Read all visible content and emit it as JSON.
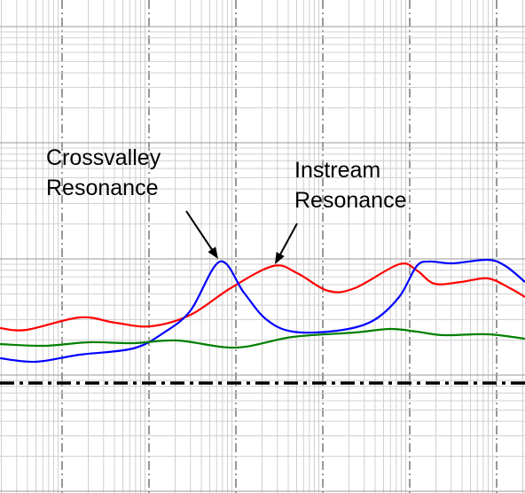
{
  "chart_data": {
    "type": "line",
    "xlim": [
      0,
      59.2
    ],
    "ylim": [
      0,
      55.6
    ],
    "series": [
      {
        "color": "#ff0000",
        "x": [
          0,
          3,
          9,
          13,
          17,
          21.5,
          26,
          30.8,
          33.5,
          37,
          40,
          45,
          47,
          49,
          52,
          55,
          57.5,
          59.2
        ],
        "values": [
          18.6,
          18.4,
          19.8,
          19.2,
          18.8,
          20.1,
          23.1,
          25.6,
          24.8,
          22.8,
          23.1,
          25.8,
          25.1,
          23.6,
          23.8,
          24.2,
          23.1,
          22.1
        ]
      },
      {
        "color": "#0000ff",
        "x": [
          0,
          4,
          9,
          15,
          18.5,
          21.5,
          24.8,
          27.5,
          30,
          33,
          38,
          42,
          45,
          47,
          48.5,
          51,
          55,
          57,
          59.2
        ],
        "values": [
          15.2,
          14.8,
          15.6,
          16.3,
          18.1,
          20.6,
          26.1,
          22.6,
          19.6,
          18.2,
          18.3,
          19.4,
          22.1,
          25.6,
          26.1,
          25.9,
          26.3,
          25.6,
          23.8
        ]
      },
      {
        "color": "#008000",
        "x": [
          0,
          5,
          10,
          15,
          20,
          26.6,
          33,
          40,
          44,
          47,
          50,
          55,
          59.2
        ],
        "values": [
          16.8,
          16.6,
          17.0,
          16.9,
          17.2,
          16.4,
          17.6,
          18.1,
          18.5,
          18.2,
          17.8,
          17.9,
          17.4
        ]
      }
    ],
    "hline": {
      "value": 12.4,
      "color": "#000000"
    },
    "annotations": [
      {
        "lines": [
          "Crossvalley",
          "Resonance"
        ],
        "xy": [
          24.6,
          26.4
        ]
      },
      {
        "lines": [
          "Instream",
          "Resonance"
        ],
        "xy": [
          31.0,
          25.8
        ]
      }
    ]
  }
}
